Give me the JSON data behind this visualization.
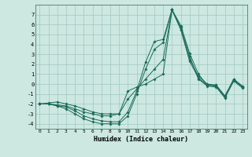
{
  "title": "",
  "xlabel": "Humidex (Indice chaleur)",
  "bg_color": "#cce8e0",
  "grid_color": "#a0c8c0",
  "line_color": "#1a6b5a",
  "xlim": [
    -0.5,
    23.5
  ],
  "ylim": [
    -4.5,
    8.0
  ],
  "xticks": [
    0,
    1,
    2,
    3,
    4,
    5,
    6,
    7,
    8,
    9,
    10,
    11,
    12,
    13,
    14,
    15,
    16,
    17,
    18,
    19,
    20,
    21,
    22,
    23
  ],
  "yticks": [
    -4,
    -3,
    -2,
    -1,
    0,
    1,
    2,
    3,
    4,
    5,
    6,
    7
  ],
  "series": [
    [
      0,
      -2
    ],
    [
      1,
      -2
    ],
    [
      2,
      -2.2
    ],
    [
      3,
      -2.3
    ],
    [
      4,
      -2.7
    ],
    [
      5,
      -3.2
    ],
    [
      6,
      -3.5
    ],
    [
      7,
      -3.7
    ],
    [
      8,
      -3.8
    ],
    [
      9,
      -3.8
    ],
    [
      10,
      -2.8
    ],
    [
      11,
      -0.7
    ],
    [
      12,
      2.2
    ],
    [
      13,
      4.3
    ],
    [
      14,
      4.5
    ],
    [
      15,
      7.5
    ],
    [
      16,
      5.9
    ],
    [
      17,
      3.1
    ],
    [
      18,
      1.0
    ],
    [
      19,
      -0.1
    ],
    [
      20,
      -0.2
    ],
    [
      21,
      -1.3
    ],
    [
      22,
      0.5
    ],
    [
      23,
      -0.3
    ]
  ],
  "series2": [
    [
      0,
      -2
    ],
    [
      1,
      -2
    ],
    [
      2,
      -2.2
    ],
    [
      3,
      -2.5
    ],
    [
      4,
      -3.0
    ],
    [
      5,
      -3.5
    ],
    [
      6,
      -3.8
    ],
    [
      7,
      -4.0
    ],
    [
      8,
      -4.0
    ],
    [
      9,
      -4.0
    ],
    [
      10,
      -3.2
    ],
    [
      11,
      -1.0
    ],
    [
      12,
      1.5
    ],
    [
      13,
      3.5
    ],
    [
      14,
      4.2
    ],
    [
      15,
      7.5
    ],
    [
      16,
      5.7
    ],
    [
      17,
      2.8
    ],
    [
      18,
      0.5
    ],
    [
      19,
      -0.2
    ],
    [
      20,
      -0.3
    ],
    [
      21,
      -1.4
    ],
    [
      22,
      0.3
    ],
    [
      23,
      -0.4
    ]
  ],
  "series3": [
    [
      0,
      -2
    ],
    [
      1,
      -1.9
    ],
    [
      2,
      -1.8
    ],
    [
      3,
      -2.0
    ],
    [
      4,
      -2.2
    ],
    [
      5,
      -2.5
    ],
    [
      6,
      -2.8
    ],
    [
      7,
      -3.0
    ],
    [
      8,
      -3.0
    ],
    [
      9,
      -3.0
    ],
    [
      10,
      -1.5
    ],
    [
      11,
      -0.5
    ],
    [
      12,
      0.5
    ],
    [
      13,
      1.5
    ],
    [
      14,
      2.5
    ],
    [
      15,
      7.5
    ],
    [
      16,
      5.5
    ],
    [
      17,
      2.5
    ],
    [
      18,
      0.8
    ],
    [
      19,
      0.0
    ],
    [
      20,
      -0.1
    ],
    [
      21,
      -1.2
    ],
    [
      22,
      0.5
    ],
    [
      23,
      -0.2
    ]
  ],
  "series4": [
    [
      0,
      -2
    ],
    [
      1,
      -2
    ],
    [
      2,
      -2.1
    ],
    [
      3,
      -2.2
    ],
    [
      4,
      -2.5
    ],
    [
      5,
      -2.8
    ],
    [
      6,
      -3.0
    ],
    [
      7,
      -3.2
    ],
    [
      8,
      -3.2
    ],
    [
      9,
      -3.0
    ],
    [
      10,
      -0.7
    ],
    [
      11,
      -0.3
    ],
    [
      12,
      0.0
    ],
    [
      13,
      0.5
    ],
    [
      14,
      1.0
    ],
    [
      15,
      7.5
    ],
    [
      16,
      5.5
    ],
    [
      17,
      2.3
    ],
    [
      18,
      0.6
    ],
    [
      19,
      -0.1
    ],
    [
      20,
      -0.1
    ],
    [
      21,
      -1.2
    ],
    [
      22,
      0.4
    ],
    [
      23,
      -0.3
    ]
  ]
}
